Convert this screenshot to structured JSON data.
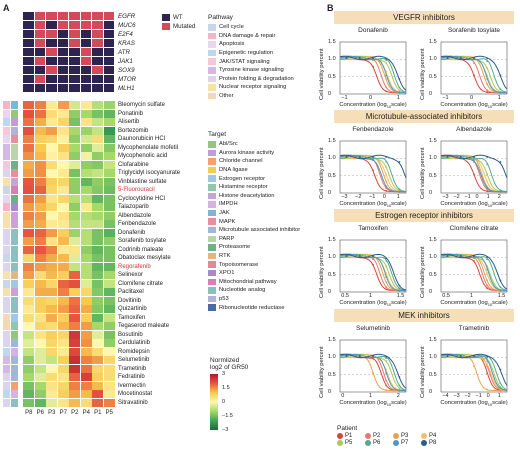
{
  "panel_a": {
    "letter": "A",
    "patients": [
      "P8",
      "P6",
      "P3",
      "P7",
      "P2",
      "P4",
      "P1",
      "P5"
    ],
    "genes": [
      "EGFR",
      "MUC6",
      "E2F4",
      "KRAS",
      "ATR",
      "JAK1",
      "SOX9",
      "MTOR",
      "MLH1"
    ],
    "mutation_status": [
      [
        0,
        1,
        1,
        1,
        1,
        1,
        1,
        1
      ],
      [
        0,
        1,
        0,
        1,
        1,
        1,
        1,
        0
      ],
      [
        0,
        1,
        1,
        0,
        1,
        0,
        1,
        0
      ],
      [
        0,
        1,
        0,
        0,
        1,
        0,
        1,
        0
      ],
      [
        0,
        0,
        1,
        0,
        0,
        1,
        0,
        0
      ],
      [
        0,
        1,
        0,
        0,
        0,
        1,
        0,
        0
      ],
      [
        0,
        0,
        1,
        0,
        0,
        0,
        1,
        0
      ],
      [
        0,
        1,
        0,
        0,
        0,
        0,
        0,
        0
      ],
      [
        0,
        0,
        0,
        0,
        0,
        0,
        0,
        0
      ]
    ],
    "mutation_legend": [
      {
        "label": "WT",
        "color": "#2d2550"
      },
      {
        "label": "Mutated",
        "color": "#d44a5b"
      }
    ],
    "drugs": [
      "Bleomycin sulfate",
      "Ponatinib",
      "Alisertib",
      "Bortezomib",
      "Daunorubicin HCl",
      "Mycophenolate mofetil",
      "Mycophenolic acid",
      "Clofarabine",
      "Triglycidyl isocyanurate",
      "Vinblastine sulfate",
      "5-Fluorouracil",
      "Cyclocytidine HCl",
      "Talazoparib",
      "Albendazole",
      "Fenbendazole",
      "Donafenib",
      "Sorafenib tosylate",
      "Codrinib maleate",
      "Obatoclax mesylate",
      "Regorafenib",
      "Selinexor",
      "Clomifene citrate",
      "Paclitaxel",
      "Dovitinib",
      "Quizartinib",
      "Tamoxifen",
      "Tegaserod maleate",
      "Bosutinib",
      "Cerdulatinib",
      "Romidepsin",
      "Selumetinib",
      "Trametinib",
      "Fedratinib",
      "Ivermectin",
      "Mocetinostat",
      "Sitravatinib"
    ],
    "highlighted_drugs": [
      "5-Fluorouracil",
      "Regorafenib"
    ],
    "heat_values": [
      [
        1.4,
        1.2,
        0.2,
        1.0,
        -0.3,
        0.2,
        -0.5,
        -0.7
      ],
      [
        1.6,
        1.3,
        0.4,
        0.2,
        -0.8,
        -0.6,
        -1.0,
        -1.2
      ],
      [
        1.3,
        0.9,
        0.2,
        0.5,
        -1.0,
        0.3,
        -0.4,
        -0.6
      ],
      [
        1.6,
        0.8,
        1.0,
        0.3,
        -0.6,
        -0.7,
        -0.4,
        -1.8
      ],
      [
        1.2,
        0.6,
        0.5,
        0.1,
        -0.8,
        -0.3,
        0.4,
        -1.2
      ],
      [
        1.3,
        0.7,
        0.0,
        0.6,
        -0.6,
        -0.8,
        -0.2,
        -0.9
      ],
      [
        1.1,
        0.8,
        0.1,
        0.3,
        -0.8,
        -0.1,
        -0.8,
        -0.6
      ],
      [
        0.9,
        1.1,
        0.4,
        0.0,
        -0.2,
        -0.8,
        -0.9,
        -0.4
      ],
      [
        1.0,
        1.1,
        0.0,
        0.2,
        -1.0,
        -0.5,
        -0.4,
        -0.6
      ],
      [
        1.5,
        1.2,
        0.6,
        0.5,
        -0.8,
        -1.2,
        -0.8,
        -1.0
      ],
      [
        1.6,
        1.4,
        0.5,
        0.2,
        -0.8,
        -0.6,
        -0.9,
        -1.1
      ],
      [
        1.3,
        1.0,
        0.3,
        0.5,
        -0.5,
        -0.5,
        -1.2,
        -1.0
      ],
      [
        1.0,
        0.8,
        0.5,
        0.0,
        -0.8,
        0.2,
        -0.6,
        -1.0
      ],
      [
        1.2,
        1.0,
        0.0,
        0.3,
        -0.6,
        -0.5,
        -0.6,
        -0.8
      ],
      [
        1.0,
        0.9,
        0.2,
        0.2,
        -0.5,
        -0.4,
        -0.4,
        -1.0
      ],
      [
        1.5,
        1.4,
        1.0,
        0.6,
        -0.7,
        -0.5,
        -1.0,
        -1.3
      ],
      [
        1.0,
        1.2,
        0.3,
        0.8,
        -0.2,
        -0.5,
        -1.0,
        -0.8
      ],
      [
        1.4,
        1.5,
        1.2,
        0.2,
        0.3,
        -0.8,
        -1.2,
        -1.0
      ],
      [
        0.5,
        1.2,
        0.9,
        0.8,
        -0.2,
        -0.6,
        -1.0,
        -1.0
      ],
      [
        1.2,
        1.0,
        0.9,
        0.9,
        -0.4,
        -0.5,
        -1.2,
        -1.2
      ],
      [
        1.0,
        0.4,
        0.8,
        0.6,
        1.4,
        -0.5,
        -1.0,
        -0.6
      ],
      [
        0.6,
        0.8,
        0.5,
        1.4,
        1.6,
        -0.2,
        -1.0,
        -0.4
      ],
      [
        0.2,
        0.9,
        0.9,
        1.2,
        0.6,
        0.5,
        -0.9,
        -1.2
      ],
      [
        0.4,
        0.6,
        0.5,
        0.8,
        1.3,
        0.7,
        -0.8,
        -1.0
      ],
      [
        0.2,
        0.6,
        0.8,
        1.0,
        1.4,
        0.9,
        -0.9,
        -1.2
      ],
      [
        0.4,
        0.3,
        0.9,
        0.6,
        1.5,
        0.6,
        -1.2,
        -0.4
      ],
      [
        0.0,
        0.5,
        0.4,
        0.8,
        1.2,
        1.0,
        -0.6,
        -0.8
      ],
      [
        -0.4,
        0.3,
        0.6,
        0.5,
        2.2,
        1.0,
        -0.2,
        -1.0
      ],
      [
        -0.2,
        0.0,
        0.5,
        0.3,
        2.0,
        1.1,
        0.0,
        -0.8
      ],
      [
        -0.4,
        -0.2,
        0.5,
        0.2,
        1.8,
        0.8,
        0.4,
        0.0
      ],
      [
        -0.8,
        -0.2,
        -0.4,
        0.6,
        2.4,
        1.2,
        1.0,
        0.5
      ],
      [
        -0.8,
        -0.4,
        0.0,
        0.5,
        2.3,
        1.3,
        0.5,
        0.4
      ],
      [
        -0.6,
        -0.2,
        0.4,
        0.3,
        1.4,
        2.0,
        0.6,
        0.4
      ],
      [
        -1.0,
        -0.6,
        0.3,
        0.5,
        1.2,
        1.2,
        0.8,
        0.3
      ],
      [
        -1.2,
        -0.8,
        0.2,
        0.6,
        1.0,
        0.8,
        1.6,
        0.2
      ],
      [
        -1.0,
        -1.2,
        -0.2,
        0.3,
        0.8,
        0.4,
        1.4,
        1.2
      ]
    ],
    "pathway_idx": [
      1,
      2,
      3,
      4,
      2,
      5,
      5,
      4,
      6,
      7,
      0,
      2,
      1,
      7,
      7,
      6,
      6,
      6,
      0,
      6,
      7,
      0,
      7,
      6,
      6,
      8,
      8,
      6,
      6,
      3,
      5,
      5,
      6,
      6,
      3,
      6
    ],
    "target_idx": [
      8,
      0,
      1,
      18,
      9,
      11,
      11,
      12,
      9,
      6,
      16,
      12,
      15,
      6,
      6,
      17,
      17,
      17,
      17,
      17,
      13,
      4,
      6,
      17,
      17,
      4,
      5,
      0,
      10,
      7,
      10,
      10,
      10,
      2,
      7,
      17
    ],
    "pathway_legend": {
      "title": "Pathway",
      "items": [
        {
          "label": "Cell cycle",
          "color": "#c8d6ea"
        },
        {
          "label": "DNA damage & repair",
          "color": "#f2b6c8"
        },
        {
          "label": "Apoptosis",
          "color": "#e9d6ee"
        },
        {
          "label": "Epigenetic regulation",
          "color": "#bcd7ee"
        },
        {
          "label": "JAK/STAT signaling",
          "color": "#f6c7d8"
        },
        {
          "label": "Tyrosine kinase signaling",
          "color": "#d3b9e3"
        },
        {
          "label": "Protein folding & degradation",
          "color": "#dcd3ee"
        },
        {
          "label": "Nuclear receptor signaling",
          "color": "#f7e1a6"
        },
        {
          "label": "Other",
          "color": "#f1d9b3"
        }
      ]
    },
    "target_legend": {
      "title": "Target",
      "items": [
        {
          "label": "Abl/Src",
          "color": "#94c77c"
        },
        {
          "label": "Aurora kinase activity",
          "color": "#c29cd6"
        },
        {
          "label": "Chloride channel",
          "color": "#f5a16b"
        },
        {
          "label": "DNA ligase",
          "color": "#f2cd4f"
        },
        {
          "label": "Estrogen receptor",
          "color": "#9ec8e3"
        },
        {
          "label": "Histamine receptor",
          "color": "#8fc6ad"
        },
        {
          "label": "Histone deacetylation",
          "color": "#c9a2d6"
        },
        {
          "label": "IMPDH",
          "color": "#d6b1e2"
        },
        {
          "label": "JAK",
          "color": "#7db4da"
        },
        {
          "label": "MAPK",
          "color": "#e58fa0"
        },
        {
          "label": "Microtubule associated inhibitor",
          "color": "#a0b8d8"
        },
        {
          "label": "PARP",
          "color": "#b9d4a6"
        },
        {
          "label": "Proteasome",
          "color": "#6fb08c"
        },
        {
          "label": "RTK",
          "color": "#e7b57f"
        },
        {
          "label": "Topoisomerase",
          "color": "#de8a92"
        },
        {
          "label": "XPO1",
          "color": "#a78ac9"
        },
        {
          "label": "Mitochondrial pathway",
          "color": "#d97fb1"
        },
        {
          "label": "Nucleotide analog",
          "color": "#8bbfc0"
        },
        {
          "label": "p53",
          "color": "#b3b3d9"
        },
        {
          "label": "Ribonucleotide reductase",
          "color": "#4a6ba8"
        }
      ]
    },
    "colorbar": {
      "title_line1": "Normlized",
      "title_line2": "log2 of GR50",
      "ticks": [
        "3",
        "1.5",
        "0",
        "−1.5",
        "−3"
      ]
    }
  },
  "panel_b": {
    "letter": "B",
    "sections": [
      {
        "title": "VEGFR inhibitors",
        "plots": [
          {
            "name": "Donafenib",
            "xticks": [
              "−1",
              "0",
              "1"
            ],
            "ymin": 0,
            "ymax": 1.5
          },
          {
            "name": "Sorafenib tosylate",
            "xticks": [
              "−1",
              "0",
              "1"
            ],
            "ymin": 0,
            "ymax": 1.5
          }
        ]
      },
      {
        "title": "Microtubule-associated inhibitors",
        "plots": [
          {
            "name": "Fenbendazole",
            "xticks": [
              "−3",
              "−2",
              "−1",
              "0",
              "1"
            ],
            "ymin": 0,
            "ymax": 1.5
          },
          {
            "name": "Albendazole",
            "xticks": [
              "−3",
              "−2",
              "−1",
              "0",
              "1",
              "2"
            ],
            "ymin": 0,
            "ymax": 1.5
          }
        ]
      },
      {
        "title": "Estrogen receptor inhibitors",
        "plots": [
          {
            "name": "Tamoxifen",
            "xticks": [
              "0.5",
              "1",
              "1.5"
            ],
            "ymin": 0,
            "ymax": 1.5
          },
          {
            "name": "Clomifene citrate",
            "xticks": [
              "0.5",
              "1",
              "1.5"
            ],
            "ymin": 0,
            "ymax": 1.5
          }
        ]
      },
      {
        "title": "MEK inhibitors",
        "plots": [
          {
            "name": "Selumetinib",
            "xticks": [
              "0",
              "1",
              "2"
            ],
            "ymin": 0,
            "ymax": 1.5
          },
          {
            "name": "Trametinib",
            "xticks": [
              "−4",
              "−3",
              "−2",
              "−1",
              "0",
              "1"
            ],
            "ymin": 0,
            "ymax": 1.5
          }
        ]
      }
    ],
    "ylabel": "Cell viability percent",
    "xlabel_prefix": "Concentration (log",
    "xlabel_sub": "10",
    "xlabel_suffix": "scale)",
    "ytick_labels": [
      "0",
      "0.5",
      "1.0",
      "1.5"
    ],
    "patient_legend_title": "Patient",
    "patients": [
      {
        "label": "P1",
        "color": "#d9443b"
      },
      {
        "label": "P2",
        "color": "#e8776f"
      },
      {
        "label": "P3",
        "color": "#e7a24a"
      },
      {
        "label": "P4",
        "color": "#efc16a"
      },
      {
        "label": "P5",
        "color": "#a9c95a"
      },
      {
        "label": "P6",
        "color": "#56a98f"
      },
      {
        "label": "P7",
        "color": "#4c98c2"
      },
      {
        "label": "P8",
        "color": "#2d5c8a"
      }
    ]
  }
}
